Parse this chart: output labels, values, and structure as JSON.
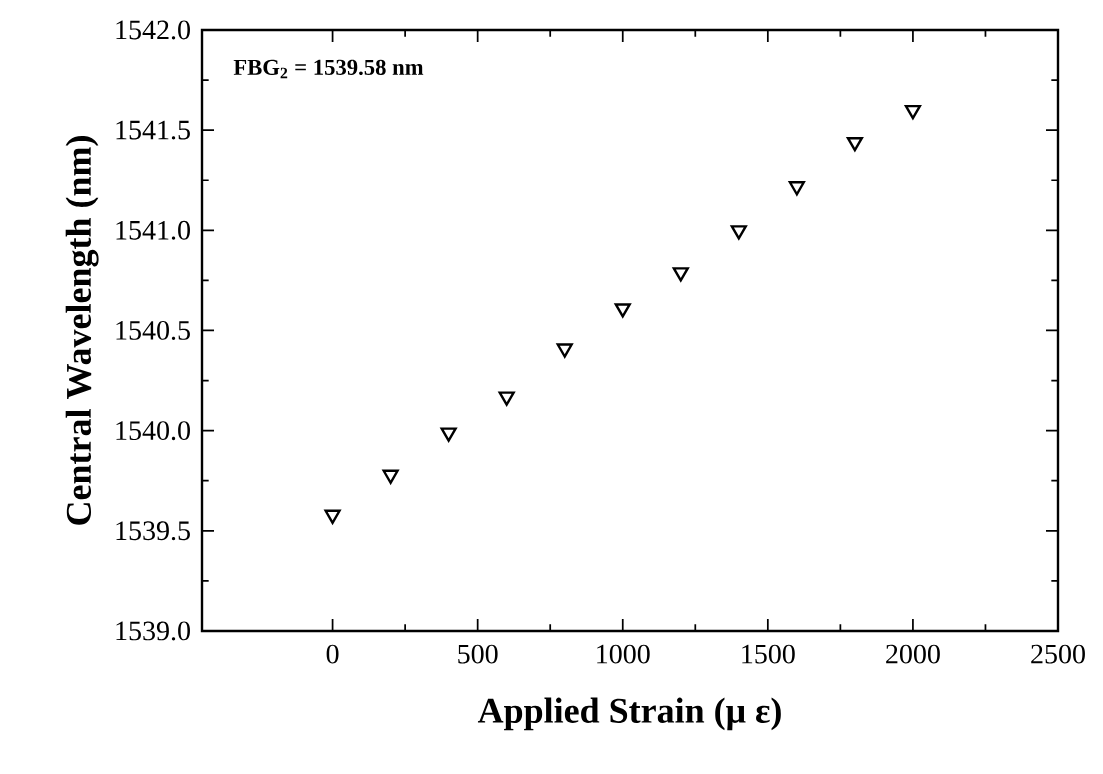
{
  "chart_data": {
    "type": "scatter",
    "xlabel": "Applied Strain (μ ε)",
    "ylabel": "Central Wavelength (nm)",
    "annotations": [
      "FBG$_{2}$ = 1539.58 nm"
    ],
    "x": [
      0,
      200,
      400,
      600,
      800,
      1000,
      1200,
      1400,
      1600,
      1800,
      2000
    ],
    "values": [
      1539.58,
      1539.78,
      1539.99,
      1540.17,
      1540.41,
      1540.61,
      1540.79,
      1541.0,
      1541.22,
      1541.44,
      1541.6
    ],
    "color": "#000000",
    "marker": "triangle",
    "xlim": [
      -450,
      2500
    ],
    "xticks": [
      0,
      500,
      1000,
      1500,
      2000,
      2500
    ],
    "ylim": [
      1539.0,
      1542.0
    ],
    "yticks": [
      {
        "value": 1539.0,
        "label": "1539.0"
      },
      {
        "value": 1539.5,
        "label": "1539.5"
      },
      {
        "value": 1540.0,
        "label": "1540.0"
      },
      {
        "value": 1540.5,
        "label": "1540.5"
      },
      {
        "value": 1541.0,
        "label": "1541.0"
      },
      {
        "value": 1541.5,
        "label": "1541.5"
      },
      {
        "value": 1542.0,
        "label": "1542.0"
      }
    ],
    "grid": false
  }
}
